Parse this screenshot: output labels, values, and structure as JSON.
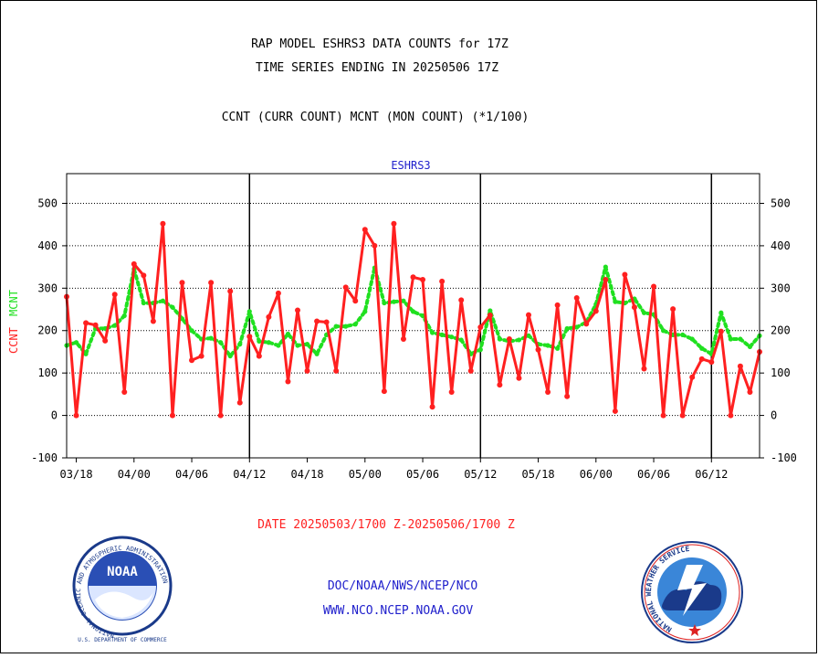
{
  "chart_data": {
    "type": "line",
    "title": "RAP MODEL ESHRS3 DATA COUNTS for 17Z",
    "subtitle": "TIME SERIES ENDING IN 20250506 17Z",
    "description_line": "CCNT (CURR COUNT) MCNT (MON COUNT) (*1/100)",
    "panel_label": "ESHRS3",
    "ylabel_series1": "CCNT",
    "ylabel_series2": "MCNT",
    "date_range": "DATE 20250503/1700 Z-20250506/1700 Z",
    "ylim": [
      -100,
      570
    ],
    "yticks": [
      -100,
      0,
      100,
      200,
      300,
      400,
      500
    ],
    "grid": true,
    "x_tick_labels": [
      "03/18",
      "04/00",
      "04/06",
      "04/12",
      "04/18",
      "05/00",
      "05/06",
      "05/12",
      "05/18",
      "06/00",
      "06/06",
      "06/12"
    ],
    "series": [
      {
        "name": "CCNT",
        "color": "#ff2020",
        "style": "solid",
        "values": [
          280,
          0,
          218,
          213,
          176,
          285,
          55,
          357,
          330,
          222,
          452,
          0,
          313,
          130,
          140,
          313,
          0,
          293,
          30,
          186,
          140,
          232,
          288,
          80,
          248,
          105,
          222,
          220,
          105,
          302,
          270,
          438,
          400,
          57,
          452,
          180,
          326,
          320,
          20,
          316,
          55,
          272,
          105,
          208,
          236,
          72,
          180,
          88,
          237,
          155,
          55,
          260,
          45,
          277,
          216,
          246,
          320,
          10,
          332,
          255,
          110,
          304,
          0,
          251,
          0,
          90,
          133,
          126,
          198,
          0,
          116,
          55,
          150
        ]
      },
      {
        "name": "MCNT",
        "color": "#20e020",
        "style": "dotted",
        "values": [
          165,
          172,
          145,
          205,
          205,
          212,
          235,
          345,
          265,
          265,
          270,
          255,
          228,
          200,
          180,
          182,
          172,
          140,
          168,
          245,
          175,
          172,
          165,
          192,
          165,
          168,
          145,
          190,
          210,
          210,
          215,
          245,
          348,
          265,
          268,
          270,
          245,
          235,
          195,
          190,
          185,
          178,
          145,
          155,
          247,
          180,
          175,
          178,
          188,
          168,
          165,
          158,
          205,
          208,
          220,
          262,
          350,
          268,
          265,
          275,
          242,
          238,
          200,
          190,
          190,
          180,
          158,
          145,
          242,
          180,
          180,
          162,
          188
        ]
      }
    ]
  },
  "footer": {
    "agency_line": "DOC/NOAA/NWS/NCEP/NCO",
    "url_line": "WWW.NCO.NCEP.NOAA.GOV"
  },
  "logos": {
    "noaa": {
      "center_text": "NOAA",
      "ring_text": "NATIONAL OCEANIC AND ATMOSPHERIC ADMINISTRATION",
      "bottom_text": "U.S. DEPARTMENT OF COMMERCE"
    },
    "nws": {
      "ring_text": "NATIONAL WEATHER SERVICE"
    }
  },
  "colors": {
    "frame": "#000000",
    "title_text": "#000000",
    "panel_label": "#2020cc",
    "date_text": "#ff2020",
    "footer_text": "#2020cc",
    "ccnt": "#ff2020",
    "mcnt": "#20e020"
  }
}
